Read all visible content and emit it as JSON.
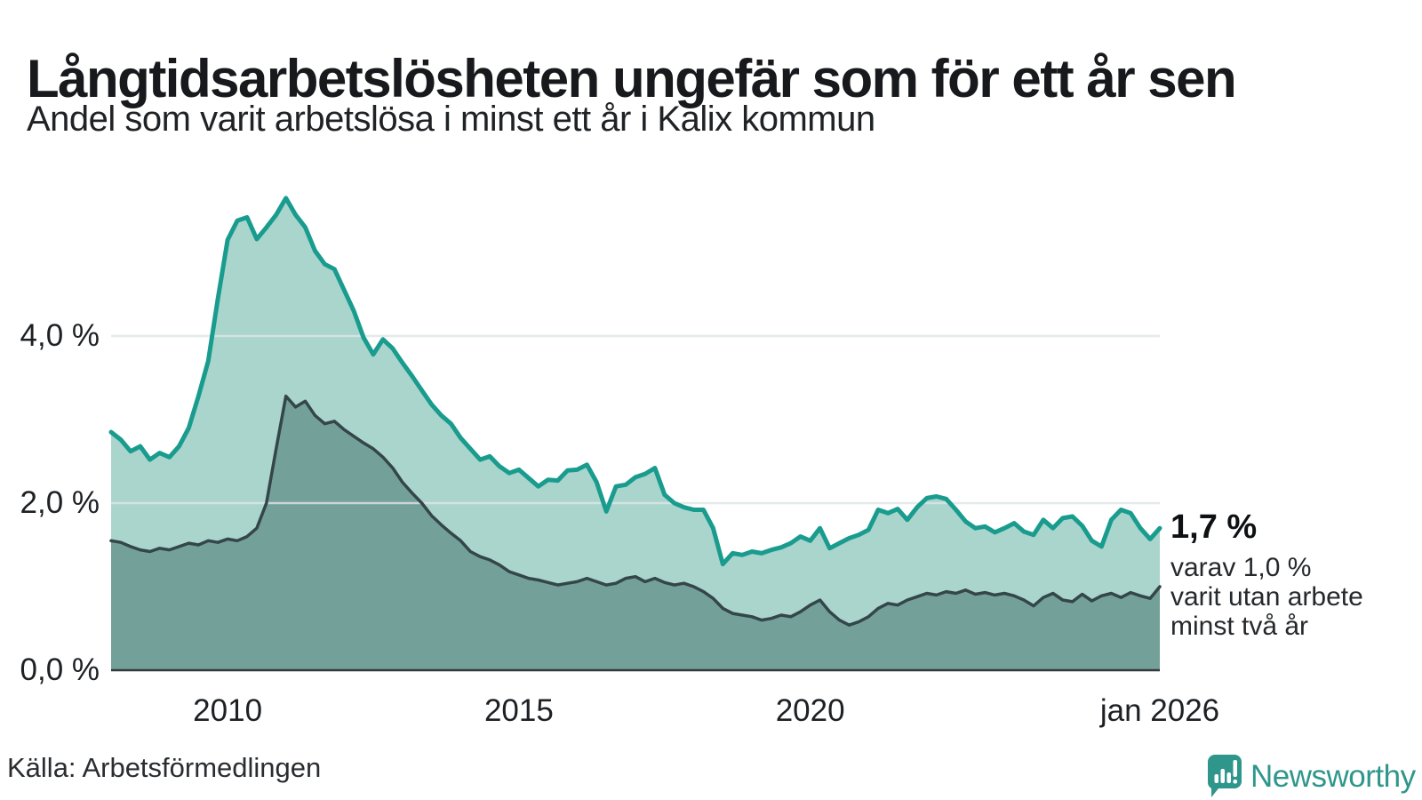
{
  "header": {
    "title": "Långtidsarbetslösheten ungefär som för ett år sen",
    "subtitle": "Andel som varit arbetslösa i minst ett år i Kalix kommun"
  },
  "chart_data": {
    "type": "area",
    "title": "Långtidsarbetslösheten ungefär som för ett år sen",
    "subtitle": "Andel som varit arbetslösa i minst ett år i Kalix kommun",
    "unit": "%",
    "x_start": 2008,
    "x_end": 2026,
    "ylim": [
      0,
      5.9
    ],
    "grid": "horizontal only, at 2.0 and 4.0",
    "legend_position": "none (annotation at line end)",
    "y_ticks": [
      {
        "value": 4,
        "label": "4,0 %"
      },
      {
        "value": 2,
        "label": "2,0 %"
      },
      {
        "value": 0,
        "label": "0,0 %"
      }
    ],
    "x_ticks": [
      {
        "x": 2010,
        "label": "2010"
      },
      {
        "x": 2015,
        "label": "2015"
      },
      {
        "x": 2020,
        "label": "2020"
      },
      {
        "x": 2026,
        "label": "jan 2026"
      }
    ],
    "colors": {
      "grid": "#dfe5e8",
      "axis": "#33383c"
    },
    "series": [
      {
        "name": "Arbetslösa minst ett år",
        "line_color": "#199c8e",
        "fill_color": "#a9d5cd",
        "line_width": 5,
        "values": [
          2.85,
          2.76,
          2.62,
          2.68,
          2.52,
          2.6,
          2.55,
          2.68,
          2.9,
          3.28,
          3.7,
          4.45,
          5.15,
          5.38,
          5.42,
          5.16,
          5.3,
          5.45,
          5.65,
          5.45,
          5.3,
          5.02,
          4.86,
          4.8,
          4.55,
          4.3,
          3.98,
          3.78,
          3.96,
          3.85,
          3.68,
          3.52,
          3.35,
          3.18,
          3.05,
          2.95,
          2.78,
          2.65,
          2.52,
          2.56,
          2.44,
          2.36,
          2.4,
          2.3,
          2.2,
          2.28,
          2.27,
          2.39,
          2.4,
          2.46,
          2.25,
          1.9,
          2.2,
          2.22,
          2.31,
          2.35,
          2.42,
          2.1,
          2.0,
          1.95,
          1.92,
          1.92,
          1.7,
          1.27,
          1.4,
          1.38,
          1.42,
          1.4,
          1.44,
          1.47,
          1.52,
          1.6,
          1.55,
          1.7,
          1.46,
          1.52,
          1.58,
          1.62,
          1.68,
          1.92,
          1.88,
          1.93,
          1.8,
          1.95,
          2.06,
          2.08,
          2.05,
          1.92,
          1.78,
          1.7,
          1.72,
          1.65,
          1.7,
          1.76,
          1.66,
          1.62,
          1.8,
          1.7,
          1.82,
          1.84,
          1.73,
          1.55,
          1.48,
          1.8,
          1.92,
          1.88,
          1.7,
          1.57,
          1.7
        ]
      },
      {
        "name": "Arbetslösa minst två år",
        "line_color": "#344649",
        "fill_color": "#73a19a",
        "line_width": 3.5,
        "values": [
          1.55,
          1.53,
          1.48,
          1.44,
          1.42,
          1.46,
          1.44,
          1.48,
          1.52,
          1.5,
          1.55,
          1.53,
          1.57,
          1.55,
          1.6,
          1.7,
          2.0,
          2.65,
          3.28,
          3.15,
          3.22,
          3.05,
          2.95,
          2.98,
          2.88,
          2.8,
          2.72,
          2.65,
          2.55,
          2.42,
          2.25,
          2.12,
          2.0,
          1.85,
          1.74,
          1.64,
          1.55,
          1.42,
          1.36,
          1.32,
          1.26,
          1.18,
          1.14,
          1.1,
          1.08,
          1.05,
          1.02,
          1.04,
          1.06,
          1.1,
          1.06,
          1.02,
          1.04,
          1.1,
          1.12,
          1.06,
          1.1,
          1.05,
          1.02,
          1.04,
          1.0,
          0.94,
          0.86,
          0.74,
          0.68,
          0.66,
          0.64,
          0.6,
          0.62,
          0.66,
          0.64,
          0.7,
          0.78,
          0.84,
          0.7,
          0.6,
          0.54,
          0.58,
          0.64,
          0.74,
          0.8,
          0.78,
          0.84,
          0.88,
          0.92,
          0.9,
          0.94,
          0.92,
          0.96,
          0.91,
          0.93,
          0.9,
          0.92,
          0.89,
          0.84,
          0.77,
          0.87,
          0.92,
          0.84,
          0.82,
          0.91,
          0.83,
          0.89,
          0.92,
          0.87,
          0.93,
          0.89,
          0.86,
          1.0
        ]
      }
    ],
    "annotation": {
      "value_label": "1,7 %",
      "detail_lines": [
        "varav 1,0 %",
        "varit utan arbete",
        "minst två år"
      ]
    }
  },
  "footer": {
    "source": "Källa: Arbetsförmedlingen",
    "brand": "Newsworthy",
    "brand_color": "#2f968c",
    "logo_icon": "speech-bubble-bar-chart-exclamation"
  }
}
